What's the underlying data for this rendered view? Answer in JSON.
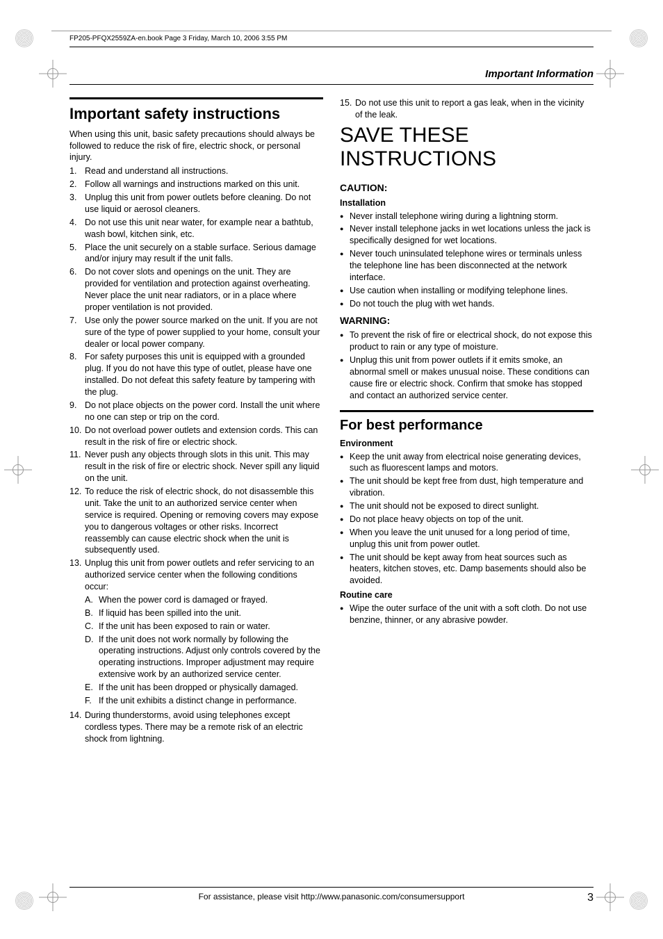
{
  "header_line": "FP205-PFQX2559ZA-en.book  Page 3  Friday, March 10, 2006  3:55 PM",
  "section_header": "Important Information",
  "left": {
    "title": "Important safety instructions",
    "intro": "When using this unit, basic safety precautions should always be followed to reduce the risk of fire, electric shock, or personal injury.",
    "items": [
      "Read and understand all instructions.",
      "Follow all warnings and instructions marked on this unit.",
      "Unplug this unit from power outlets before cleaning. Do not use liquid or aerosol cleaners.",
      "Do not use this unit near water, for example near a bathtub, wash bowl, kitchen sink, etc.",
      "Place the unit securely on a stable surface. Serious damage and/or injury may result if the unit falls.",
      "Do not cover slots and openings on the unit. They are provided for ventilation and protection against overheating. Never place the unit near radiators, or in a place where proper ventilation is not provided.",
      "Use only the power source marked on the unit. If you are not sure of the type of power supplied to your home, consult your dealer or local power company.",
      "For safety purposes this unit is equipped with a grounded plug. If you do not have this type of outlet, please have one installed. Do not defeat this safety feature by tampering with the plug.",
      "Do not place objects on the power cord. Install the unit where no one can step or trip on the cord.",
      "Do not overload power outlets and extension cords. This can result in the risk of fire or electric shock.",
      "Never push any objects through slots in this unit. This may result in the risk of fire or electric shock. Never spill any liquid on the unit.",
      "To reduce the risk of electric shock, do not disassemble this unit. Take the unit to an authorized service center when service is required. Opening or removing covers may expose you to dangerous voltages or other risks. Incorrect reassembly can cause electric shock when the unit is subsequently used.",
      "Unplug this unit from power outlets and refer servicing to an authorized service center when the following conditions occur:",
      "During thunderstorms, avoid using telephones except cordless types. There may be a remote risk of an electric shock from lightning."
    ],
    "subitems_13": [
      "When the power cord is damaged or frayed.",
      "If liquid has been spilled into the unit.",
      "If the unit has been exposed to rain or water.",
      "If the unit does not work normally by following the operating instructions. Adjust only controls covered by the operating instructions. Improper adjustment may require extensive work by an authorized service center.",
      "If the unit has been dropped or physically damaged.",
      "If the unit exhibits a distinct change in performance."
    ]
  },
  "right": {
    "item15": "Do not use this unit to report a gas leak, when in the vicinity of the leak.",
    "save_title": "SAVE THESE INSTRUCTIONS",
    "caution_title": "CAUTION:",
    "installation_title": "Installation",
    "installation": [
      "Never install telephone wiring during a lightning storm.",
      "Never install telephone jacks in wet locations unless the jack is specifically designed for wet locations.",
      "Never touch uninsulated telephone wires or terminals unless the telephone line has been disconnected at the network interface.",
      "Use caution when installing or modifying telephone lines.",
      "Do not touch the plug with wet hands."
    ],
    "warning_title": "WARNING:",
    "warning": [
      "To prevent the risk of fire or electrical shock, do not expose this product to rain or any type of moisture.",
      "Unplug this unit from power outlets if it emits smoke, an abnormal smell or makes unusual noise. These conditions can cause fire or electric shock. Confirm that smoke has stopped and contact an authorized service center."
    ],
    "perf_title": "For best performance",
    "env_title": "Environment",
    "environment": [
      "Keep the unit away from electrical noise generating devices, such as fluorescent lamps and motors.",
      "The unit should be kept free from dust, high temperature and vibration.",
      "The unit should not be exposed to direct sunlight.",
      "Do not place heavy objects on top of the unit.",
      "When you leave the unit unused for a long period of time, unplug this unit from power outlet.",
      "The unit should be kept away from heat sources such as heaters, kitchen stoves, etc. Damp basements should also be avoided."
    ],
    "routine_title": "Routine care",
    "routine": [
      "Wipe the outer surface of the unit with a soft cloth. Do not use benzine, thinner, or any abrasive powder."
    ]
  },
  "footer_text": "For assistance, please visit http://www.panasonic.com/consumersupport",
  "page_number": "3",
  "letters": [
    "A.",
    "B.",
    "C.",
    "D.",
    "E.",
    "F."
  ]
}
